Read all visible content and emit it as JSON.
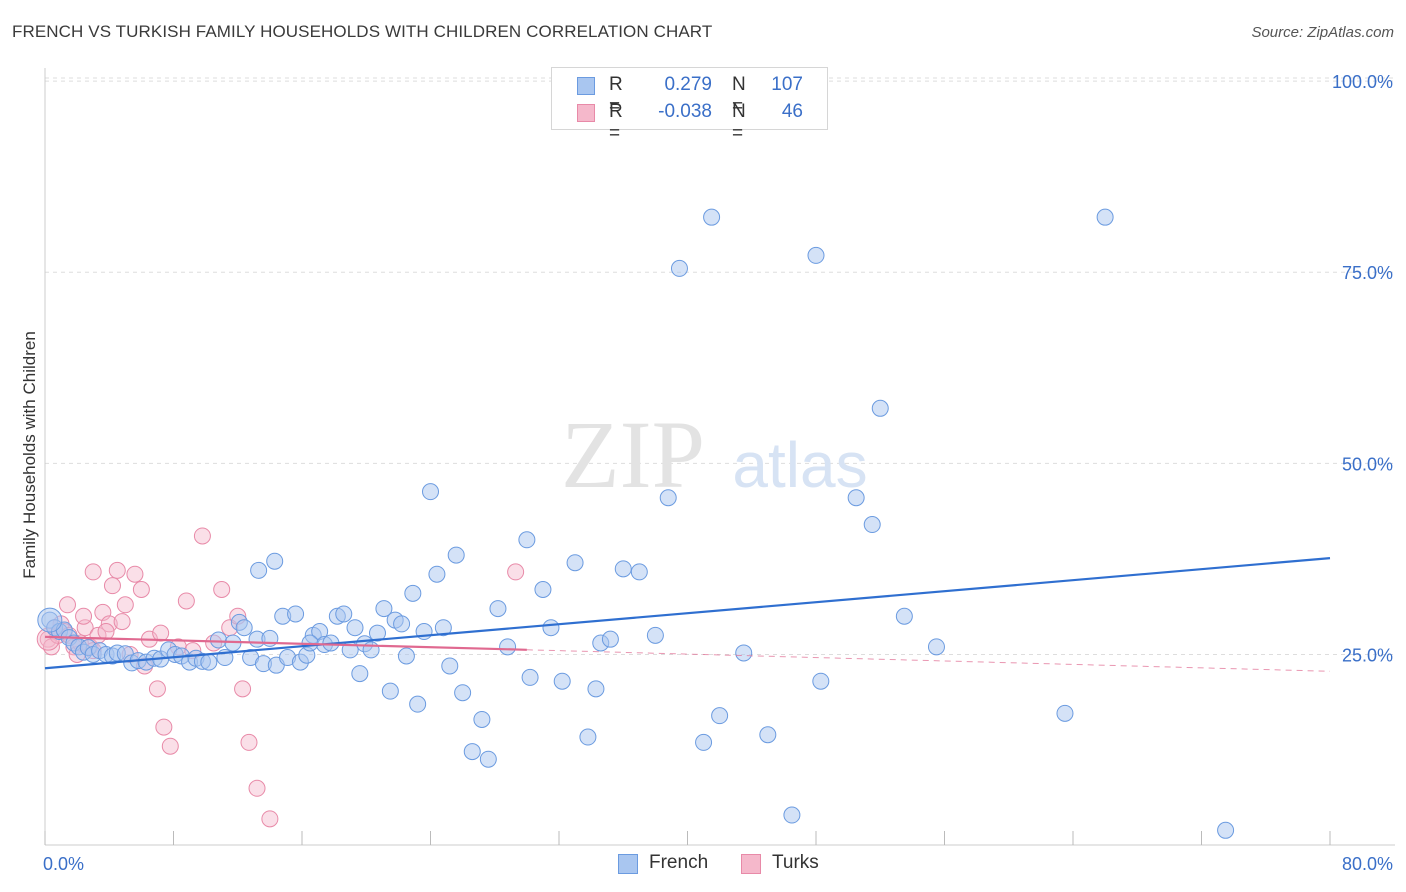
{
  "title": "FRENCH VS TURKISH FAMILY HOUSEHOLDS WITH CHILDREN CORRELATION CHART",
  "source": "Source: ZipAtlas.com",
  "watermark": {
    "zip": "ZIP",
    "atlas": "atlas"
  },
  "legend": {
    "rows": [
      {
        "r_label": "R =",
        "r_value": "0.279",
        "n_label": "N =",
        "n_value": "107"
      },
      {
        "r_label": "R =",
        "r_value": "-0.038",
        "n_label": "N =",
        "n_value": "46"
      }
    ]
  },
  "colors": {
    "french_fill": "#a9c6f0",
    "french_stroke": "#6b9be0",
    "french_line": "#2f6fd0",
    "turks_fill": "#f5b8cb",
    "turks_stroke": "#e88aa8",
    "turks_line": "#e06990",
    "axis_text": "#3a6fc8",
    "grid": "#dddddd"
  },
  "chart_data": {
    "type": "scatter",
    "title": "FRENCH VS TURKISH FAMILY HOUSEHOLDS WITH CHILDREN CORRELATION CHART",
    "xlabel": "",
    "ylabel": "Family Households with Children",
    "xlim": [
      0,
      80
    ],
    "ylim": [
      0,
      105
    ],
    "x_tick_labels": [
      "0.0%",
      "80.0%"
    ],
    "y_ticks": [
      25,
      50,
      75,
      100
    ],
    "y_tick_labels": [
      "25.0%",
      "50.0%",
      "75.0%",
      "100.0%"
    ],
    "grid": "horizontal dashed",
    "legend_position": "top-center",
    "series": [
      {
        "name": "French",
        "r": 0.279,
        "n": 107,
        "trend": {
          "x": [
            0,
            80
          ],
          "y": [
            23.2,
            37.6
          ],
          "style": "solid"
        },
        "points": [
          [
            0.3,
            29.5
          ],
          [
            0.6,
            28.5
          ],
          [
            0.9,
            28.0
          ],
          [
            1.2,
            28.2
          ],
          [
            1.5,
            27.2
          ],
          [
            1.8,
            26.5
          ],
          [
            2.1,
            26.0
          ],
          [
            2.4,
            25.3
          ],
          [
            2.7,
            25.9
          ],
          [
            3.0,
            25.0
          ],
          [
            3.4,
            25.5
          ],
          [
            3.8,
            25.0
          ],
          [
            4.2,
            24.8
          ],
          [
            4.5,
            25.2
          ],
          [
            5.0,
            25.1
          ],
          [
            5.4,
            23.9
          ],
          [
            5.8,
            24.2
          ],
          [
            6.3,
            24.0
          ],
          [
            6.8,
            24.5
          ],
          [
            7.2,
            24.4
          ],
          [
            7.7,
            25.6
          ],
          [
            8.1,
            25.0
          ],
          [
            8.5,
            24.8
          ],
          [
            9.0,
            24.0
          ],
          [
            9.4,
            24.5
          ],
          [
            9.8,
            24.1
          ],
          [
            10.2,
            24.0
          ],
          [
            10.8,
            26.9
          ],
          [
            11.2,
            24.6
          ],
          [
            11.7,
            26.5
          ],
          [
            12.1,
            29.2
          ],
          [
            12.4,
            28.5
          ],
          [
            12.8,
            24.6
          ],
          [
            13.2,
            27.0
          ],
          [
            13.6,
            23.8
          ],
          [
            14.0,
            27.1
          ],
          [
            14.4,
            23.6
          ],
          [
            14.8,
            30.0
          ],
          [
            15.1,
            24.6
          ],
          [
            15.6,
            30.3
          ],
          [
            15.9,
            24.0
          ],
          [
            16.3,
            24.9
          ],
          [
            16.7,
            27.5
          ],
          [
            17.1,
            28.0
          ],
          [
            17.4,
            26.3
          ],
          [
            17.8,
            26.5
          ],
          [
            18.2,
            30.0
          ],
          [
            18.6,
            30.3
          ],
          [
            19.0,
            25.6
          ],
          [
            19.3,
            28.5
          ],
          [
            19.6,
            22.5
          ],
          [
            19.9,
            26.4
          ],
          [
            20.3,
            25.6
          ],
          [
            20.7,
            27.8
          ],
          [
            21.1,
            31.0
          ],
          [
            21.5,
            20.2
          ],
          [
            21.8,
            29.5
          ],
          [
            22.2,
            29.0
          ],
          [
            22.5,
            24.8
          ],
          [
            22.9,
            33.0
          ],
          [
            23.2,
            18.5
          ],
          [
            23.6,
            28.0
          ],
          [
            24.0,
            46.3
          ],
          [
            24.4,
            35.5
          ],
          [
            24.8,
            28.5
          ],
          [
            25.2,
            23.5
          ],
          [
            25.6,
            38.0
          ],
          [
            26.0,
            20.0
          ],
          [
            26.6,
            12.3
          ],
          [
            27.2,
            16.5
          ],
          [
            27.6,
            11.3
          ],
          [
            28.2,
            31.0
          ],
          [
            28.8,
            26.0
          ],
          [
            30.0,
            40.0
          ],
          [
            30.2,
            22.0
          ],
          [
            31.0,
            33.5
          ],
          [
            31.5,
            28.5
          ],
          [
            32.2,
            21.5
          ],
          [
            33.0,
            37.0
          ],
          [
            33.8,
            14.2
          ],
          [
            34.3,
            20.5
          ],
          [
            34.6,
            26.5
          ],
          [
            35.2,
            27.0
          ],
          [
            36.0,
            36.2
          ],
          [
            37.0,
            35.8
          ],
          [
            38.0,
            27.5
          ],
          [
            39.5,
            75.5
          ],
          [
            41.5,
            82.2
          ],
          [
            48.0,
            77.2
          ],
          [
            14.3,
            37.2
          ],
          [
            13.3,
            36.0
          ],
          [
            16.5,
            26.5
          ],
          [
            41.0,
            13.5
          ],
          [
            42.0,
            17.0
          ],
          [
            43.5,
            25.2
          ],
          [
            45.0,
            14.5
          ],
          [
            46.5,
            4.0
          ],
          [
            48.3,
            21.5
          ],
          [
            50.5,
            45.5
          ],
          [
            51.5,
            42.0
          ],
          [
            52.0,
            57.2
          ],
          [
            53.5,
            30.0
          ],
          [
            55.5,
            26.0
          ],
          [
            63.5,
            17.3
          ],
          [
            66.0,
            82.2
          ],
          [
            73.5,
            2.0
          ],
          [
            38.8,
            45.5
          ]
        ]
      },
      {
        "name": "Turks",
        "r": -0.038,
        "n": 46,
        "trend": {
          "x": [
            0,
            80
          ],
          "y": [
            27.3,
            22.8
          ],
          "solid_until_x": 30
        },
        "points": [
          [
            0.2,
            27.0
          ],
          [
            0.4,
            26.0
          ],
          [
            0.6,
            28.5
          ],
          [
            0.8,
            27.5
          ],
          [
            1.0,
            29.0
          ],
          [
            1.2,
            28.0
          ],
          [
            1.5,
            27.5
          ],
          [
            1.8,
            26.0
          ],
          [
            2.0,
            25.0
          ],
          [
            2.2,
            26.5
          ],
          [
            2.5,
            28.5
          ],
          [
            2.8,
            26.0
          ],
          [
            3.0,
            25.5
          ],
          [
            3.3,
            27.5
          ],
          [
            3.6,
            30.5
          ],
          [
            4.0,
            29.0
          ],
          [
            4.2,
            34.0
          ],
          [
            4.5,
            36.0
          ],
          [
            5.0,
            31.5
          ],
          [
            5.3,
            25.0
          ],
          [
            5.6,
            35.5
          ],
          [
            6.0,
            33.5
          ],
          [
            6.5,
            27.0
          ],
          [
            7.0,
            20.5
          ],
          [
            7.4,
            15.5
          ],
          [
            7.8,
            13.0
          ],
          [
            8.3,
            26.0
          ],
          [
            8.8,
            32.0
          ],
          [
            9.2,
            25.5
          ],
          [
            9.8,
            40.5
          ],
          [
            10.5,
            26.5
          ],
          [
            11.0,
            33.5
          ],
          [
            11.5,
            28.5
          ],
          [
            12.0,
            30.0
          ],
          [
            12.3,
            20.5
          ],
          [
            12.7,
            13.5
          ],
          [
            13.2,
            7.5
          ],
          [
            14.0,
            3.5
          ],
          [
            3.0,
            35.8
          ],
          [
            4.8,
            29.3
          ],
          [
            1.4,
            31.5
          ],
          [
            2.4,
            30.0
          ],
          [
            3.8,
            28.0
          ],
          [
            6.2,
            23.5
          ],
          [
            7.2,
            27.8
          ],
          [
            29.3,
            35.8
          ]
        ]
      }
    ]
  }
}
